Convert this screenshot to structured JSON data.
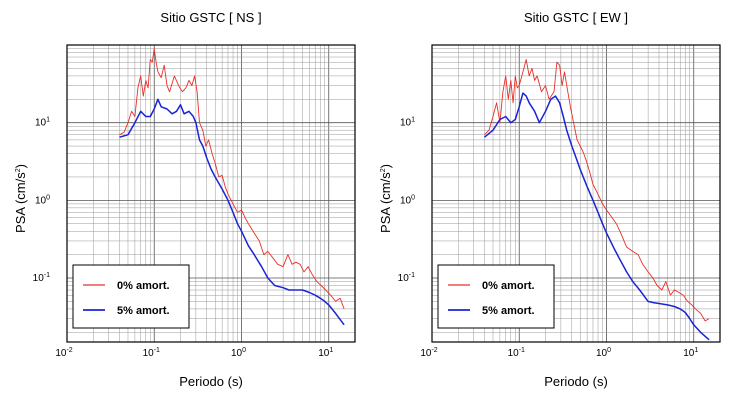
{
  "chart_data": [
    {
      "type": "line",
      "title": "Sitio GSTC [ NS ]",
      "xlabel": "Periodo (s)",
      "ylabel": "PSA (cm/s",
      "ylabel_exp": "2",
      "ylabel_close": ")",
      "xscale": "log",
      "yscale": "log",
      "xlim": [
        0.01,
        20
      ],
      "ylim": [
        0.015,
        100
      ],
      "grid": true,
      "legend": "bottom-left",
      "x_ticks": [
        {
          "base": "10",
          "exp": "-2",
          "value": 0.01
        },
        {
          "base": "10",
          "exp": "-1",
          "value": 0.1
        },
        {
          "base": "10",
          "exp": "0",
          "value": 1
        },
        {
          "base": "10",
          "exp": "1",
          "value": 10
        }
      ],
      "y_ticks": [
        {
          "base": "10",
          "exp": "-1",
          "value": 0.1
        },
        {
          "base": "10",
          "exp": "0",
          "value": 1
        },
        {
          "base": "10",
          "exp": "1",
          "value": 10
        }
      ],
      "series": [
        {
          "name": "0% amort.",
          "color": "#e8302a",
          "x": [
            0.04,
            0.045,
            0.05,
            0.055,
            0.06,
            0.065,
            0.07,
            0.075,
            0.08,
            0.085,
            0.09,
            0.095,
            0.1,
            0.105,
            0.11,
            0.12,
            0.13,
            0.14,
            0.15,
            0.17,
            0.19,
            0.21,
            0.23,
            0.25,
            0.27,
            0.29,
            0.31,
            0.33,
            0.36,
            0.39,
            0.42,
            0.46,
            0.5,
            0.55,
            0.6,
            0.65,
            0.7,
            0.8,
            0.9,
            1.0,
            1.1,
            1.2,
            1.4,
            1.6,
            1.8,
            2.0,
            2.3,
            2.6,
            3.0,
            3.4,
            3.8,
            4.2,
            4.7,
            5.2,
            5.8,
            6.5,
            7.3,
            8.2,
            9.2,
            10.5,
            12.0,
            13.5,
            15.0
          ],
          "y": [
            7,
            7.5,
            10,
            14,
            12,
            28,
            40,
            22,
            35,
            28,
            65,
            60,
            90,
            60,
            45,
            38,
            55,
            30,
            25,
            40,
            30,
            25,
            28,
            35,
            30,
            40,
            25,
            10,
            8,
            5,
            6,
            4,
            3,
            2,
            2.1,
            1.5,
            1.2,
            0.9,
            0.7,
            0.75,
            0.6,
            0.5,
            0.38,
            0.3,
            0.2,
            0.22,
            0.18,
            0.15,
            0.14,
            0.2,
            0.15,
            0.16,
            0.15,
            0.12,
            0.14,
            0.11,
            0.09,
            0.08,
            0.07,
            0.06,
            0.05,
            0.055,
            0.04
          ]
        },
        {
          "name": "5% amort.",
          "color": "#1a24d6",
          "x": [
            0.04,
            0.05,
            0.06,
            0.07,
            0.08,
            0.09,
            0.1,
            0.11,
            0.12,
            0.14,
            0.16,
            0.18,
            0.2,
            0.22,
            0.25,
            0.28,
            0.3,
            0.33,
            0.36,
            0.4,
            0.45,
            0.5,
            0.6,
            0.7,
            0.8,
            0.9,
            1.0,
            1.2,
            1.4,
            1.7,
            2.0,
            2.4,
            3.0,
            3.5,
            4.0,
            5.0,
            6.0,
            7.0,
            8.0,
            9.0,
            10.0,
            12.0,
            15.0
          ],
          "y": [
            6.5,
            7,
            10,
            14,
            12,
            12,
            15,
            20,
            16,
            15,
            13,
            14,
            17,
            13,
            14,
            12,
            10,
            6,
            5,
            3.5,
            2.5,
            2,
            1.4,
            1.0,
            0.7,
            0.5,
            0.4,
            0.26,
            0.2,
            0.14,
            0.1,
            0.08,
            0.075,
            0.07,
            0.07,
            0.07,
            0.065,
            0.06,
            0.055,
            0.05,
            0.045,
            0.035,
            0.025
          ]
        }
      ]
    },
    {
      "type": "line",
      "title": "Sitio GSTC [ EW ]",
      "xlabel": "Periodo (s)",
      "ylabel": "PSA (cm/s",
      "ylabel_exp": "2",
      "ylabel_close": ")",
      "xscale": "log",
      "yscale": "log",
      "xlim": [
        0.01,
        20
      ],
      "ylim": [
        0.015,
        100
      ],
      "grid": true,
      "legend": "bottom-left",
      "x_ticks": [
        {
          "base": "10",
          "exp": "-2",
          "value": 0.01
        },
        {
          "base": "10",
          "exp": "-1",
          "value": 0.1
        },
        {
          "base": "10",
          "exp": "0",
          "value": 1
        },
        {
          "base": "10",
          "exp": "1",
          "value": 10
        }
      ],
      "y_ticks": [
        {
          "base": "10",
          "exp": "-1",
          "value": 0.1
        },
        {
          "base": "10",
          "exp": "0",
          "value": 1
        },
        {
          "base": "10",
          "exp": "1",
          "value": 10
        }
      ],
      "series": [
        {
          "name": "0% amort.",
          "color": "#e8302a",
          "x": [
            0.04,
            0.045,
            0.05,
            0.055,
            0.06,
            0.065,
            0.07,
            0.075,
            0.08,
            0.085,
            0.09,
            0.095,
            0.1,
            0.11,
            0.12,
            0.13,
            0.14,
            0.15,
            0.16,
            0.18,
            0.2,
            0.22,
            0.25,
            0.27,
            0.29,
            0.31,
            0.33,
            0.36,
            0.39,
            0.42,
            0.46,
            0.5,
            0.55,
            0.6,
            0.65,
            0.7,
            0.8,
            0.9,
            1.0,
            1.1,
            1.3,
            1.5,
            1.7,
            2.0,
            2.3,
            2.6,
            3.0,
            3.4,
            3.8,
            4.3,
            4.8,
            5.4,
            6.0,
            6.8,
            7.6,
            8.5,
            9.5,
            10.5,
            12.0,
            13.5,
            15.0
          ],
          "y": [
            7,
            8,
            12,
            18,
            10,
            25,
            40,
            20,
            35,
            18,
            40,
            28,
            30,
            45,
            65,
            40,
            50,
            35,
            40,
            25,
            30,
            20,
            25,
            60,
            55,
            30,
            45,
            25,
            15,
            10,
            6,
            5,
            4,
            3,
            2.2,
            1.6,
            1.2,
            0.9,
            0.75,
            0.65,
            0.5,
            0.35,
            0.25,
            0.22,
            0.2,
            0.15,
            0.12,
            0.1,
            0.08,
            0.07,
            0.09,
            0.06,
            0.07,
            0.065,
            0.06,
            0.05,
            0.045,
            0.04,
            0.035,
            0.028,
            0.03
          ]
        },
        {
          "name": "5% amort.",
          "color": "#1a24d6",
          "x": [
            0.04,
            0.05,
            0.06,
            0.07,
            0.08,
            0.09,
            0.1,
            0.11,
            0.12,
            0.13,
            0.15,
            0.17,
            0.2,
            0.23,
            0.26,
            0.29,
            0.32,
            0.35,
            0.4,
            0.45,
            0.5,
            0.6,
            0.7,
            0.8,
            0.9,
            1.0,
            1.2,
            1.4,
            1.7,
            2.0,
            2.4,
            3.0,
            3.5,
            4.0,
            5.0,
            6.0,
            7.0,
            8.0,
            9.0,
            10.0,
            12.0,
            15.0
          ],
          "y": [
            6.5,
            8,
            11,
            12,
            10,
            11,
            16,
            24,
            22,
            18,
            14,
            10,
            14,
            20,
            22,
            18,
            12,
            8,
            5,
            3.5,
            2.5,
            1.5,
            1.0,
            0.7,
            0.5,
            0.38,
            0.25,
            0.18,
            0.12,
            0.09,
            0.07,
            0.05,
            0.048,
            0.047,
            0.045,
            0.043,
            0.04,
            0.036,
            0.03,
            0.025,
            0.02,
            0.016
          ]
        }
      ]
    }
  ]
}
